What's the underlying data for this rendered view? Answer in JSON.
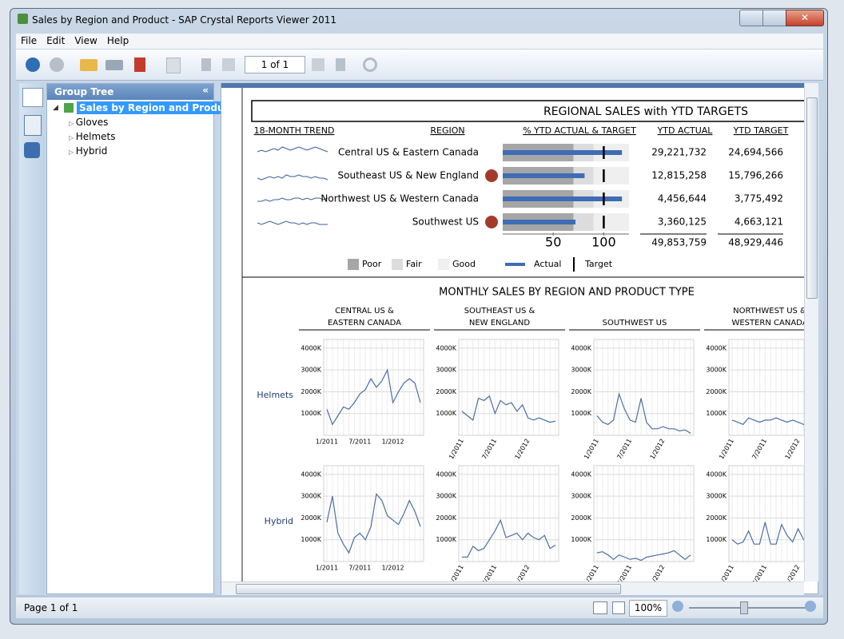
{
  "window": {
    "title": "Sales by Region and Product - SAP Crystal Reports Viewer 2011"
  },
  "menu": [
    "File",
    "Edit",
    "View",
    "Help"
  ],
  "toolbar": {
    "page": "1 of 1"
  },
  "group_tree": {
    "title": "Group Tree",
    "root": "Sales by Region and Product",
    "items": [
      "Gloves",
      "Helmets",
      "Hybrid"
    ]
  },
  "report": {
    "title": "REGIONAL SALES with YTD TARGETS",
    "columns": [
      "18-MONTH TREND",
      "REGION",
      "% YTD ACTUAL & TARGET",
      "YTD ACTUAL",
      "YTD TARGET"
    ],
    "trend_ylim": [
      0,
      10
    ],
    "trend_color": "#3a5f9a",
    "rows": [
      {
        "region": "Central US & Eastern Canada",
        "ytd_actual": "29,221,732",
        "ytd_target": "24,694,566",
        "pct_actual": 118,
        "pct_target": 100,
        "below_target": false,
        "trend": [
          5,
          6,
          5,
          6,
          7,
          6,
          8,
          7,
          6,
          7,
          8,
          7,
          6,
          7,
          8,
          7,
          6,
          5
        ]
      },
      {
        "region": "Southeast US & New England",
        "ytd_actual": "12,815,258",
        "ytd_target": "15,796,266",
        "pct_actual": 81,
        "pct_target": 100,
        "below_target": true,
        "trend": [
          3,
          2,
          3,
          4,
          3,
          4,
          3,
          5,
          4,
          4,
          5,
          4,
          4,
          3,
          4,
          3,
          3,
          2
        ]
      },
      {
        "region": "Northwest US & Western Canada",
        "ytd_actual": "4,456,644",
        "ytd_target": "3,775,492",
        "pct_actual": 118,
        "pct_target": 100,
        "below_target": false,
        "trend": [
          3,
          3,
          4,
          3,
          4,
          4,
          5,
          4,
          4,
          5,
          5,
          4,
          5,
          4,
          5,
          5,
          4,
          5
        ]
      },
      {
        "region": "Southwest US",
        "ytd_actual": "3,360,125",
        "ytd_target": "4,663,121",
        "pct_actual": 72,
        "pct_target": 100,
        "below_target": true,
        "trend": [
          4,
          3,
          4,
          5,
          4,
          3,
          4,
          5,
          4,
          4,
          3,
          4,
          3,
          4,
          4,
          3,
          3,
          3
        ]
      }
    ],
    "totals": {
      "ytd_actual": "49,853,759",
      "ytd_target": "48,929,446"
    },
    "bullet": {
      "xlim": [
        0,
        125
      ],
      "xticks": [
        50,
        100
      ],
      "bands": [
        {
          "name": "Poor",
          "to": 70,
          "color": "#a6a6a6"
        },
        {
          "name": "Fair",
          "to": 90,
          "color": "#dcdcdc"
        },
        {
          "name": "Good",
          "to": 125,
          "color": "#efefef"
        }
      ],
      "actual": {
        "name": "Actual",
        "color": "#3f6cb5"
      },
      "target": {
        "name": "Target",
        "color": "#000000"
      },
      "flag_color": "#a33b2c"
    },
    "monthly": {
      "title": "MONTHLY SALES BY REGION AND PRODUCT TYPE",
      "categories": [
        "1/2011",
        null,
        null,
        null,
        null,
        null,
        "7/2011",
        null,
        null,
        null,
        null,
        null,
        "1/2012",
        null,
        null,
        null,
        null,
        null
      ],
      "ylim": [
        0,
        4400
      ],
      "yticks": [
        {
          "value": 1000,
          "label": "1000K"
        },
        {
          "value": 2000,
          "label": "2000K"
        },
        {
          "value": 3000,
          "label": "3000K"
        },
        {
          "value": 4000,
          "label": "4000K"
        }
      ],
      "grid": true,
      "color": "#4a6fa5",
      "columns": [
        {
          "label": [
            "CENTRAL US &",
            "EASTERN CANADA"
          ],
          "rotate_x_labels": false
        },
        {
          "label": [
            "SOUTHEAST US &",
            "NEW ENGLAND"
          ],
          "rotate_x_labels": true
        },
        {
          "label": [
            "SOUTHWEST US"
          ],
          "rotate_x_labels": true
        },
        {
          "label": [
            "NORTHWEST US &",
            "WESTERN CANADA"
          ],
          "rotate_x_labels": true
        }
      ],
      "rows": [
        {
          "label": "Helmets",
          "series": [
            [
              1200,
              500,
              900,
              1300,
              1200,
              1500,
              1900,
              2100,
              2600,
              2200,
              2500,
              3000,
              1500,
              2000,
              2400,
              2600,
              2400,
              1500
            ],
            [
              1100,
              900,
              700,
              1700,
              1600,
              1800,
              1000,
              1600,
              1400,
              1500,
              1100,
              1400,
              800,
              700,
              800,
              700,
              600,
              650
            ],
            [
              900,
              600,
              500,
              700,
              1900,
              1200,
              700,
              600,
              1700,
              600,
              300,
              300,
              400,
              300,
              300,
              200,
              250,
              100
            ],
            [
              700,
              600,
              500,
              800,
              700,
              600,
              700,
              700,
              800,
              700,
              600,
              700,
              600,
              500,
              600,
              700,
              500,
              600
            ]
          ]
        },
        {
          "label": "Hybrid",
          "series": [
            [
              1800,
              3000,
              1300,
              800,
              400,
              1100,
              1300,
              1000,
              1600,
              3100,
              2800,
              2100,
              1900,
              1700,
              2200,
              2800,
              2300,
              1600
            ],
            [
              200,
              200,
              700,
              500,
              600,
              1000,
              1400,
              1900,
              1100,
              1200,
              1300,
              1000,
              1300,
              1100,
              1000,
              1200,
              600,
              750
            ],
            [
              400,
              450,
              300,
              100,
              300,
              200,
              100,
              150,
              50,
              200,
              250,
              300,
              350,
              400,
              500,
              300,
              100,
              300
            ],
            [
              1000,
              800,
              900,
              1400,
              800,
              800,
              1800,
              800,
              800,
              1700,
              1200,
              900,
              1500,
              1000,
              900,
              500,
              400,
              500
            ]
          ]
        }
      ]
    }
  },
  "status": {
    "page": "Page 1 of 1",
    "zoom": "100%"
  }
}
